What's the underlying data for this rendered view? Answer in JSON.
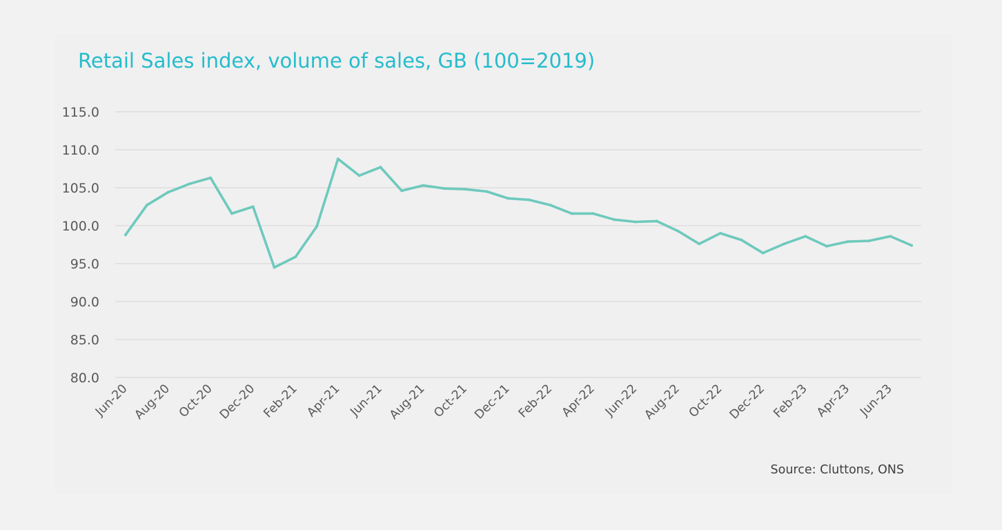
{
  "source": "Source: Cluttons, ONS",
  "colors": {
    "title": "#26bccc",
    "line": "#6ec9bd",
    "background": "#f2f2f2",
    "grid": "#d9d9d9",
    "text": "#595959"
  },
  "chart_data": {
    "type": "line",
    "title": "Retail Sales index, volume of sales, GB (100=2019)",
    "xlabel": "",
    "ylabel": "",
    "ylim": [
      80,
      115
    ],
    "y_ticks": [
      "115.0",
      "110.0",
      "105.0",
      "100.0",
      "95.0",
      "90.0",
      "85.0",
      "80.0"
    ],
    "grid": true,
    "x": [
      "Jun-20",
      "Jul-20",
      "Aug-20",
      "Sep-20",
      "Oct-20",
      "Nov-20",
      "Dec-20",
      "Jan-21",
      "Feb-21",
      "Mar-21",
      "Apr-21",
      "May-21",
      "Jun-21",
      "Jul-21",
      "Aug-21",
      "Sep-21",
      "Oct-21",
      "Nov-21",
      "Dec-21",
      "Jan-22",
      "Feb-22",
      "Mar-22",
      "Apr-22",
      "May-22",
      "Jun-22",
      "Jul-22",
      "Aug-22",
      "Sep-22",
      "Oct-22",
      "Nov-22",
      "Dec-22",
      "Jan-23",
      "Feb-23",
      "Mar-23",
      "Apr-23",
      "May-23",
      "Jun-23",
      "Jul-23"
    ],
    "x_tick_labels": [
      "Jun-20",
      "Aug-20",
      "Oct-20",
      "Dec-20",
      "Feb-21",
      "Apr-21",
      "Jun-21",
      "Aug-21",
      "Oct-21",
      "Dec-21",
      "Feb-22",
      "Apr-22",
      "Jun-22",
      "Aug-22",
      "Oct-22",
      "Dec-22",
      "Feb-23",
      "Apr-23",
      "Jun-23"
    ],
    "series": [
      {
        "values": [
          98.8,
          102.7,
          104.4,
          105.5,
          106.3,
          101.6,
          102.5,
          94.5,
          95.9,
          99.9,
          108.8,
          106.6,
          107.7,
          104.6,
          105.3,
          104.9,
          104.8,
          104.5,
          103.6,
          103.4,
          102.7,
          101.6,
          101.6,
          100.8,
          100.5,
          100.6,
          99.3,
          97.6,
          99.0,
          98.1,
          96.4,
          97.6,
          98.6,
          97.3,
          97.9,
          98.0,
          98.6,
          97.4
        ]
      }
    ]
  }
}
